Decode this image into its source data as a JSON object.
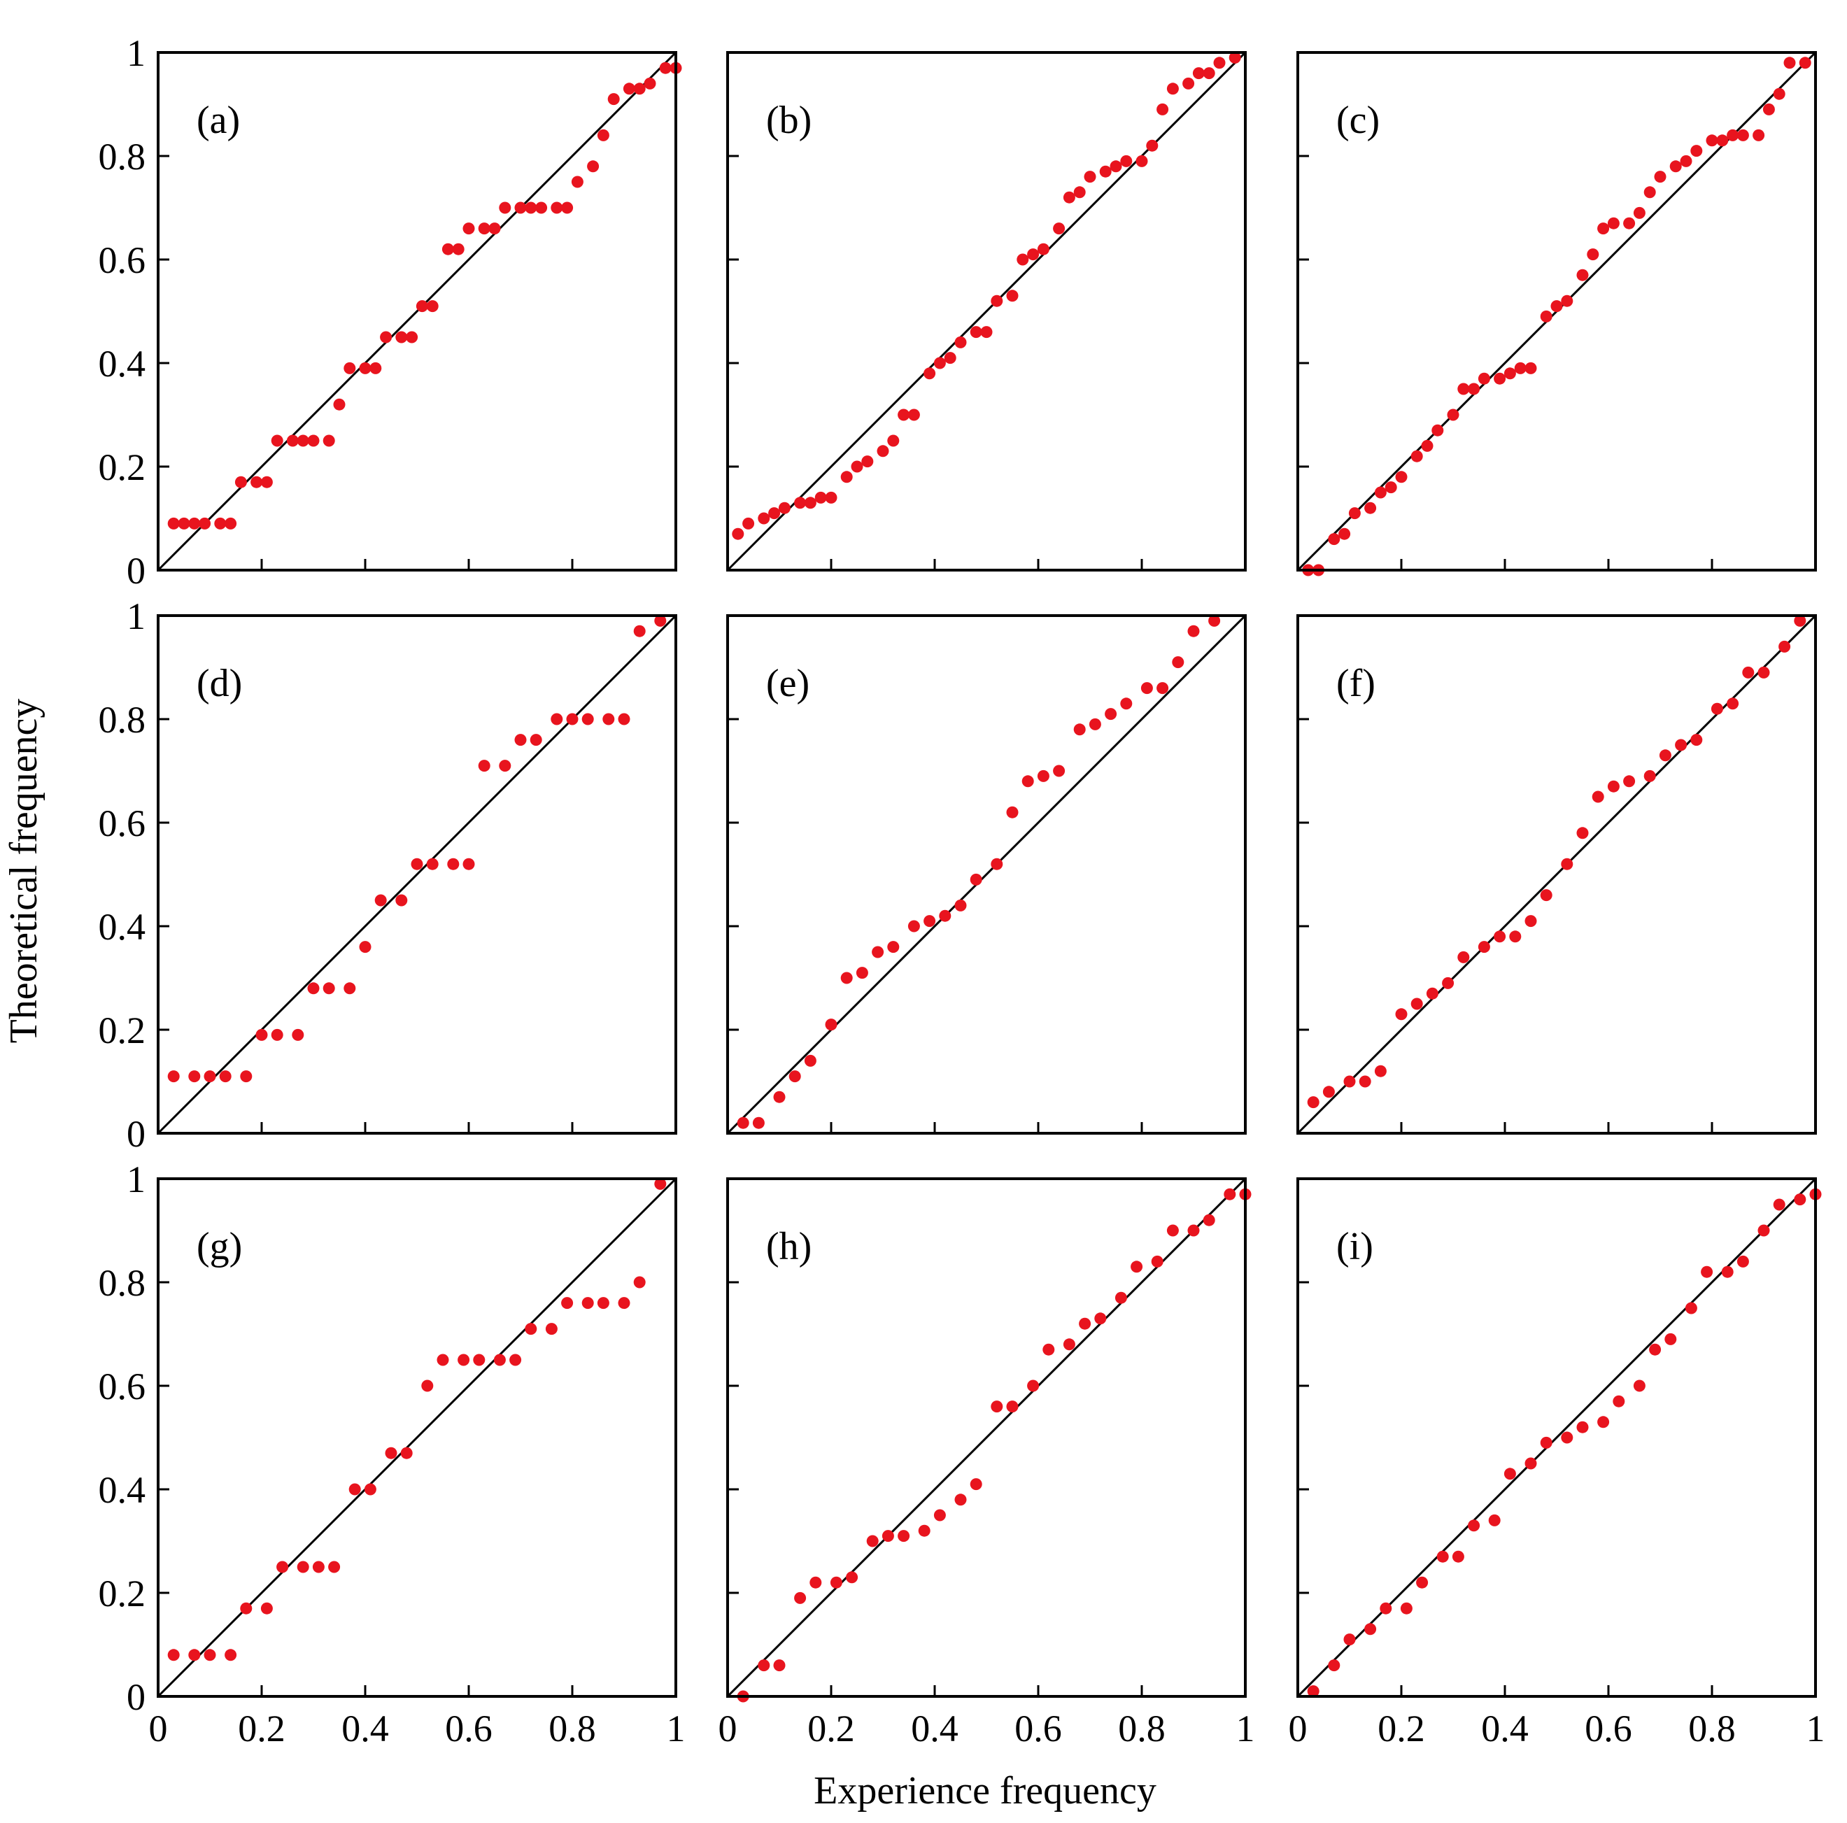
{
  "chart_data": {
    "type": "scatter",
    "xlabel": "Experience frequency",
    "ylabel": "Theoretical frequency",
    "xlim": [
      0,
      1
    ],
    "ylim": [
      0,
      1
    ],
    "xticks": [
      "0",
      "0.2",
      "0.4",
      "0.6",
      "0.8",
      "1"
    ],
    "yticks": [
      "0",
      "0.2",
      "0.4",
      "0.6",
      "0.8",
      "1"
    ],
    "grid": false,
    "legend": "none",
    "reference_line": "y = x",
    "point_color": "#e8141e",
    "line_color": "#000000",
    "panels": [
      {
        "label": "(a)",
        "points": [
          [
            0.03,
            0.09
          ],
          [
            0.05,
            0.09
          ],
          [
            0.07,
            0.09
          ],
          [
            0.09,
            0.09
          ],
          [
            0.12,
            0.09
          ],
          [
            0.14,
            0.09
          ],
          [
            0.16,
            0.17
          ],
          [
            0.19,
            0.17
          ],
          [
            0.21,
            0.17
          ],
          [
            0.23,
            0.25
          ],
          [
            0.26,
            0.25
          ],
          [
            0.28,
            0.25
          ],
          [
            0.3,
            0.25
          ],
          [
            0.33,
            0.25
          ],
          [
            0.35,
            0.32
          ],
          [
            0.37,
            0.39
          ],
          [
            0.4,
            0.39
          ],
          [
            0.42,
            0.39
          ],
          [
            0.44,
            0.45
          ],
          [
            0.47,
            0.45
          ],
          [
            0.49,
            0.45
          ],
          [
            0.51,
            0.51
          ],
          [
            0.53,
            0.51
          ],
          [
            0.56,
            0.62
          ],
          [
            0.58,
            0.62
          ],
          [
            0.6,
            0.66
          ],
          [
            0.63,
            0.66
          ],
          [
            0.65,
            0.66
          ],
          [
            0.67,
            0.7
          ],
          [
            0.7,
            0.7
          ],
          [
            0.72,
            0.7
          ],
          [
            0.74,
            0.7
          ],
          [
            0.77,
            0.7
          ],
          [
            0.79,
            0.7
          ],
          [
            0.81,
            0.75
          ],
          [
            0.84,
            0.78
          ],
          [
            0.86,
            0.84
          ],
          [
            0.88,
            0.91
          ],
          [
            0.91,
            0.93
          ],
          [
            0.93,
            0.93
          ],
          [
            0.95,
            0.94
          ],
          [
            0.98,
            0.97
          ],
          [
            1.0,
            0.97
          ]
        ]
      },
      {
        "label": "(b)",
        "points": [
          [
            0.02,
            0.07
          ],
          [
            0.04,
            0.09
          ],
          [
            0.07,
            0.1
          ],
          [
            0.09,
            0.11
          ],
          [
            0.11,
            0.12
          ],
          [
            0.14,
            0.13
          ],
          [
            0.16,
            0.13
          ],
          [
            0.18,
            0.14
          ],
          [
            0.2,
            0.14
          ],
          [
            0.23,
            0.18
          ],
          [
            0.25,
            0.2
          ],
          [
            0.27,
            0.21
          ],
          [
            0.3,
            0.23
          ],
          [
            0.32,
            0.25
          ],
          [
            0.34,
            0.3
          ],
          [
            0.36,
            0.3
          ],
          [
            0.39,
            0.38
          ],
          [
            0.41,
            0.4
          ],
          [
            0.43,
            0.41
          ],
          [
            0.45,
            0.44
          ],
          [
            0.48,
            0.46
          ],
          [
            0.5,
            0.46
          ],
          [
            0.52,
            0.52
          ],
          [
            0.55,
            0.53
          ],
          [
            0.57,
            0.6
          ],
          [
            0.59,
            0.61
          ],
          [
            0.61,
            0.62
          ],
          [
            0.64,
            0.66
          ],
          [
            0.66,
            0.72
          ],
          [
            0.68,
            0.73
          ],
          [
            0.7,
            0.76
          ],
          [
            0.73,
            0.77
          ],
          [
            0.75,
            0.78
          ],
          [
            0.77,
            0.79
          ],
          [
            0.8,
            0.79
          ],
          [
            0.82,
            0.82
          ],
          [
            0.84,
            0.89
          ],
          [
            0.86,
            0.93
          ],
          [
            0.89,
            0.94
          ],
          [
            0.91,
            0.96
          ],
          [
            0.93,
            0.96
          ],
          [
            0.95,
            0.98
          ],
          [
            0.98,
            0.99
          ]
        ]
      },
      {
        "label": "(c)",
        "points": [
          [
            0.02,
            0.0
          ],
          [
            0.04,
            0.0
          ],
          [
            0.07,
            0.06
          ],
          [
            0.09,
            0.07
          ],
          [
            0.11,
            0.11
          ],
          [
            0.14,
            0.12
          ],
          [
            0.16,
            0.15
          ],
          [
            0.18,
            0.16
          ],
          [
            0.2,
            0.18
          ],
          [
            0.23,
            0.22
          ],
          [
            0.25,
            0.24
          ],
          [
            0.27,
            0.27
          ],
          [
            0.3,
            0.3
          ],
          [
            0.32,
            0.35
          ],
          [
            0.34,
            0.35
          ],
          [
            0.36,
            0.37
          ],
          [
            0.39,
            0.37
          ],
          [
            0.41,
            0.38
          ],
          [
            0.43,
            0.39
          ],
          [
            0.45,
            0.39
          ],
          [
            0.48,
            0.49
          ],
          [
            0.5,
            0.51
          ],
          [
            0.52,
            0.52
          ],
          [
            0.55,
            0.57
          ],
          [
            0.57,
            0.61
          ],
          [
            0.59,
            0.66
          ],
          [
            0.61,
            0.67
          ],
          [
            0.64,
            0.67
          ],
          [
            0.66,
            0.69
          ],
          [
            0.68,
            0.73
          ],
          [
            0.7,
            0.76
          ],
          [
            0.73,
            0.78
          ],
          [
            0.75,
            0.79
          ],
          [
            0.77,
            0.81
          ],
          [
            0.8,
            0.83
          ],
          [
            0.82,
            0.83
          ],
          [
            0.84,
            0.84
          ],
          [
            0.86,
            0.84
          ],
          [
            0.89,
            0.84
          ],
          [
            0.91,
            0.89
          ],
          [
            0.93,
            0.92
          ],
          [
            0.95,
            0.98
          ],
          [
            0.98,
            0.98
          ]
        ]
      },
      {
        "label": "(d)",
        "points": [
          [
            0.03,
            0.11
          ],
          [
            0.07,
            0.11
          ],
          [
            0.1,
            0.11
          ],
          [
            0.13,
            0.11
          ],
          [
            0.17,
            0.11
          ],
          [
            0.2,
            0.19
          ],
          [
            0.23,
            0.19
          ],
          [
            0.27,
            0.19
          ],
          [
            0.3,
            0.28
          ],
          [
            0.33,
            0.28
          ],
          [
            0.37,
            0.28
          ],
          [
            0.4,
            0.36
          ],
          [
            0.43,
            0.45
          ],
          [
            0.47,
            0.45
          ],
          [
            0.5,
            0.52
          ],
          [
            0.53,
            0.52
          ],
          [
            0.57,
            0.52
          ],
          [
            0.6,
            0.52
          ],
          [
            0.63,
            0.71
          ],
          [
            0.67,
            0.71
          ],
          [
            0.7,
            0.76
          ],
          [
            0.73,
            0.76
          ],
          [
            0.77,
            0.8
          ],
          [
            0.8,
            0.8
          ],
          [
            0.83,
            0.8
          ],
          [
            0.87,
            0.8
          ],
          [
            0.9,
            0.8
          ],
          [
            0.93,
            0.97
          ],
          [
            0.97,
            0.99
          ]
        ]
      },
      {
        "label": "(e)",
        "points": [
          [
            0.03,
            0.02
          ],
          [
            0.06,
            0.02
          ],
          [
            0.1,
            0.07
          ],
          [
            0.13,
            0.11
          ],
          [
            0.16,
            0.14
          ],
          [
            0.2,
            0.21
          ],
          [
            0.23,
            0.3
          ],
          [
            0.26,
            0.31
          ],
          [
            0.29,
            0.35
          ],
          [
            0.32,
            0.36
          ],
          [
            0.36,
            0.4
          ],
          [
            0.39,
            0.41
          ],
          [
            0.42,
            0.42
          ],
          [
            0.45,
            0.44
          ],
          [
            0.48,
            0.49
          ],
          [
            0.52,
            0.52
          ],
          [
            0.55,
            0.62
          ],
          [
            0.58,
            0.68
          ],
          [
            0.61,
            0.69
          ],
          [
            0.64,
            0.7
          ],
          [
            0.68,
            0.78
          ],
          [
            0.71,
            0.79
          ],
          [
            0.74,
            0.81
          ],
          [
            0.77,
            0.83
          ],
          [
            0.81,
            0.86
          ],
          [
            0.84,
            0.86
          ],
          [
            0.87,
            0.91
          ],
          [
            0.9,
            0.97
          ],
          [
            0.94,
            0.99
          ]
        ]
      },
      {
        "label": "(f)",
        "points": [
          [
            0.03,
            0.06
          ],
          [
            0.06,
            0.08
          ],
          [
            0.1,
            0.1
          ],
          [
            0.13,
            0.1
          ],
          [
            0.16,
            0.12
          ],
          [
            0.2,
            0.23
          ],
          [
            0.23,
            0.25
          ],
          [
            0.26,
            0.27
          ],
          [
            0.29,
            0.29
          ],
          [
            0.32,
            0.34
          ],
          [
            0.36,
            0.36
          ],
          [
            0.39,
            0.38
          ],
          [
            0.42,
            0.38
          ],
          [
            0.45,
            0.41
          ],
          [
            0.48,
            0.46
          ],
          [
            0.52,
            0.52
          ],
          [
            0.55,
            0.58
          ],
          [
            0.58,
            0.65
          ],
          [
            0.61,
            0.67
          ],
          [
            0.64,
            0.68
          ],
          [
            0.68,
            0.69
          ],
          [
            0.71,
            0.73
          ],
          [
            0.74,
            0.75
          ],
          [
            0.77,
            0.76
          ],
          [
            0.81,
            0.82
          ],
          [
            0.84,
            0.83
          ],
          [
            0.87,
            0.89
          ],
          [
            0.9,
            0.89
          ],
          [
            0.94,
            0.94
          ],
          [
            0.97,
            0.99
          ]
        ]
      },
      {
        "label": "(g)",
        "points": [
          [
            0.03,
            0.08
          ],
          [
            0.07,
            0.08
          ],
          [
            0.1,
            0.08
          ],
          [
            0.14,
            0.08
          ],
          [
            0.17,
            0.17
          ],
          [
            0.21,
            0.17
          ],
          [
            0.24,
            0.25
          ],
          [
            0.28,
            0.25
          ],
          [
            0.31,
            0.25
          ],
          [
            0.34,
            0.25
          ],
          [
            0.38,
            0.4
          ],
          [
            0.41,
            0.4
          ],
          [
            0.45,
            0.47
          ],
          [
            0.48,
            0.47
          ],
          [
            0.52,
            0.6
          ],
          [
            0.55,
            0.65
          ],
          [
            0.59,
            0.65
          ],
          [
            0.62,
            0.65
          ],
          [
            0.66,
            0.65
          ],
          [
            0.69,
            0.65
          ],
          [
            0.72,
            0.71
          ],
          [
            0.76,
            0.71
          ],
          [
            0.79,
            0.76
          ],
          [
            0.83,
            0.76
          ],
          [
            0.86,
            0.76
          ],
          [
            0.9,
            0.76
          ],
          [
            0.93,
            0.8
          ],
          [
            0.97,
            0.99
          ]
        ]
      },
      {
        "label": "(h)",
        "points": [
          [
            0.03,
            0.0
          ],
          [
            0.07,
            0.06
          ],
          [
            0.1,
            0.06
          ],
          [
            0.14,
            0.19
          ],
          [
            0.17,
            0.22
          ],
          [
            0.21,
            0.22
          ],
          [
            0.24,
            0.23
          ],
          [
            0.28,
            0.3
          ],
          [
            0.31,
            0.31
          ],
          [
            0.34,
            0.31
          ],
          [
            0.38,
            0.32
          ],
          [
            0.41,
            0.35
          ],
          [
            0.45,
            0.38
          ],
          [
            0.48,
            0.41
          ],
          [
            0.52,
            0.56
          ],
          [
            0.55,
            0.56
          ],
          [
            0.59,
            0.6
          ],
          [
            0.62,
            0.67
          ],
          [
            0.66,
            0.68
          ],
          [
            0.69,
            0.72
          ],
          [
            0.72,
            0.73
          ],
          [
            0.76,
            0.77
          ],
          [
            0.79,
            0.83
          ],
          [
            0.83,
            0.84
          ],
          [
            0.86,
            0.9
          ],
          [
            0.9,
            0.9
          ],
          [
            0.93,
            0.92
          ],
          [
            0.97,
            0.97
          ],
          [
            1.0,
            0.97
          ]
        ]
      },
      {
        "label": "(i)",
        "points": [
          [
            0.03,
            0.01
          ],
          [
            0.07,
            0.06
          ],
          [
            0.1,
            0.11
          ],
          [
            0.14,
            0.13
          ],
          [
            0.17,
            0.17
          ],
          [
            0.21,
            0.17
          ],
          [
            0.24,
            0.22
          ],
          [
            0.28,
            0.27
          ],
          [
            0.31,
            0.27
          ],
          [
            0.34,
            0.33
          ],
          [
            0.38,
            0.34
          ],
          [
            0.41,
            0.43
          ],
          [
            0.45,
            0.45
          ],
          [
            0.48,
            0.49
          ],
          [
            0.52,
            0.5
          ],
          [
            0.55,
            0.52
          ],
          [
            0.59,
            0.53
          ],
          [
            0.62,
            0.57
          ],
          [
            0.66,
            0.6
          ],
          [
            0.69,
            0.67
          ],
          [
            0.72,
            0.69
          ],
          [
            0.76,
            0.75
          ],
          [
            0.79,
            0.82
          ],
          [
            0.83,
            0.82
          ],
          [
            0.86,
            0.84
          ],
          [
            0.9,
            0.9
          ],
          [
            0.93,
            0.95
          ],
          [
            0.97,
            0.96
          ],
          [
            1.0,
            0.97
          ]
        ]
      }
    ]
  }
}
